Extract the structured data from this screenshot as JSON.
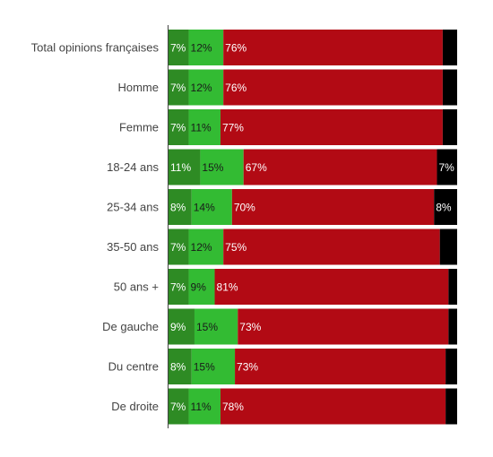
{
  "chart_data": {
    "type": "bar",
    "orientation": "horizontal",
    "stacked": true,
    "normalized": true,
    "xlim": [
      0,
      100
    ],
    "grid": false,
    "legend": "none",
    "categories": [
      "Total opinions françaises",
      "Homme",
      "Femme",
      "18-24 ans",
      "25-34 ans",
      "35-50 ans",
      "50 ans +",
      "De gauche",
      "Du centre",
      "De droite"
    ],
    "series": [
      {
        "color": "#2e8b24",
        "label_color": "#ffffff",
        "values": [
          7,
          7,
          7,
          11,
          8,
          7,
          7,
          9,
          8,
          7
        ]
      },
      {
        "color": "#33bb33",
        "label_color": "#1a1a1a",
        "values": [
          12,
          12,
          11,
          15,
          14,
          12,
          9,
          15,
          15,
          11
        ]
      },
      {
        "color": "#b20a14",
        "label_color": "#ffffff",
        "values": [
          76,
          76,
          77,
          67,
          70,
          75,
          81,
          73,
          73,
          78
        ]
      },
      {
        "color": "#000000",
        "label_color": "#ffffff",
        "values": [
          5,
          5,
          5,
          7,
          8,
          6,
          3,
          3,
          4,
          4
        ]
      }
    ],
    "labels": [
      [
        "7%",
        "12%",
        "76%",
        ""
      ],
      [
        "7%",
        "12%",
        "76%",
        ""
      ],
      [
        "7%",
        "11%",
        "77%",
        ""
      ],
      [
        "11%",
        "15%",
        "67%",
        "7%"
      ],
      [
        "8%",
        "14%",
        "70%",
        "8%"
      ],
      [
        "7%",
        "12%",
        "75%",
        ""
      ],
      [
        "7%",
        "9%",
        "81%",
        ""
      ],
      [
        "9%",
        "15%",
        "73%",
        ""
      ],
      [
        "8%",
        "15%",
        "73%",
        ""
      ],
      [
        "7%",
        "11%",
        "78%",
        ""
      ]
    ]
  }
}
